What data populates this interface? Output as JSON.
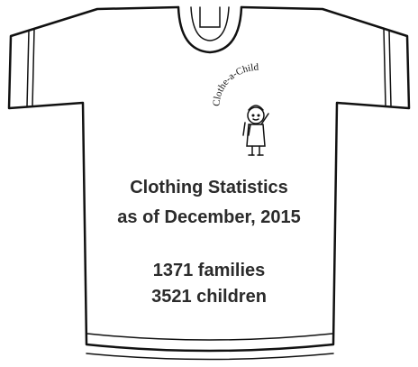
{
  "logo": {
    "text": "Clothe-a-Child"
  },
  "title": {
    "line1": "Clothing Statistics",
    "line2": "as of December, 2015"
  },
  "stats": {
    "line1": "1371 families",
    "line2": "3521 children"
  }
}
